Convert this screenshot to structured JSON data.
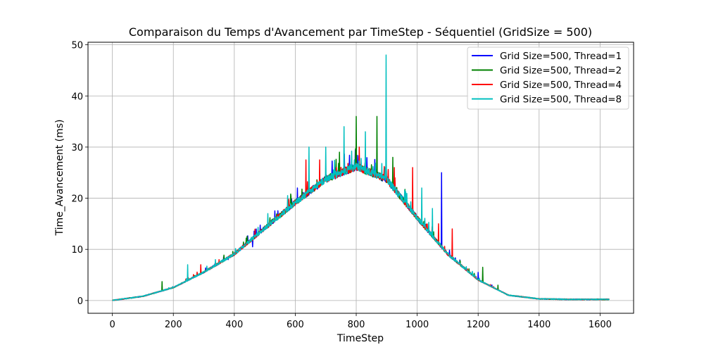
{
  "chart_data": {
    "type": "line",
    "title": "Comparaison du Temps d'Avancement par TimeStep - Séquentiel (GridSize = 500)",
    "xlabel": "TimeStep",
    "ylabel": "Time_Avancement (ms)",
    "xlim": [
      -80,
      1710
    ],
    "ylim": [
      -2.5,
      50.5
    ],
    "xticks": [
      0,
      200,
      400,
      600,
      800,
      1000,
      1200,
      1400,
      1600
    ],
    "yticks": [
      0,
      10,
      20,
      30,
      40,
      50
    ],
    "grid": true,
    "legend_position": "top-right",
    "series": [
      {
        "name": "Grid Size=500, Thread=1",
        "color": "#0000ff",
        "x": [
          0,
          100,
          200,
          300,
          400,
          500,
          600,
          700,
          800,
          900,
          1000,
          1100,
          1200,
          1300,
          1400,
          1500,
          1630
        ],
        "y": [
          0,
          0.8,
          2.5,
          5.5,
          9.0,
          14.0,
          19.0,
          23.5,
          26.0,
          23.5,
          16.0,
          9.0,
          4.0,
          1.0,
          0.3,
          0.2,
          0.2
        ],
        "peaks": [
          [
            380,
            8.0
          ],
          [
            460,
            10.5
          ],
          [
            730,
            26
          ],
          [
            1080,
            25
          ],
          [
            1200,
            5.5
          ]
        ]
      },
      {
        "name": "Grid Size=500, Thread=2",
        "color": "#008000",
        "x": [
          0,
          100,
          200,
          300,
          400,
          500,
          600,
          700,
          800,
          900,
          1000,
          1100,
          1200,
          1300,
          1400,
          1500,
          1630
        ],
        "y": [
          0,
          0.8,
          2.5,
          5.5,
          9.0,
          14.0,
          19.0,
          23.5,
          26.0,
          23.5,
          16.0,
          9.0,
          4.0,
          1.0,
          0.3,
          0.2,
          0.2
        ],
        "peaks": [
          [
            163,
            3.7
          ],
          [
            395,
            9.6
          ],
          [
            745,
            29
          ],
          [
            800,
            36
          ],
          [
            868,
            36
          ],
          [
            920,
            28
          ],
          [
            1215,
            6.5
          ],
          [
            1265,
            3
          ]
        ]
      },
      {
        "name": "Grid Size=500, Thread=4",
        "color": "#ff0000",
        "x": [
          0,
          100,
          200,
          300,
          400,
          500,
          600,
          700,
          800,
          900,
          1000,
          1100,
          1200,
          1300,
          1400,
          1500,
          1630
        ],
        "y": [
          0,
          0.8,
          2.5,
          5.5,
          9.0,
          14.0,
          19.0,
          23.5,
          26.0,
          23.5,
          16.0,
          9.0,
          4.0,
          1.0,
          0.3,
          0.2,
          0.2
        ],
        "peaks": [
          [
            290,
            7.0
          ],
          [
            480,
            13.5
          ],
          [
            635,
            27.5
          ],
          [
            680,
            27.5
          ],
          [
            735,
            26
          ],
          [
            810,
            30
          ],
          [
            925,
            26
          ],
          [
            985,
            26
          ],
          [
            1070,
            15
          ],
          [
            1115,
            14
          ]
        ]
      },
      {
        "name": "Grid Size=500, Thread=8",
        "color": "#00bfbf",
        "x": [
          0,
          100,
          200,
          300,
          400,
          500,
          600,
          700,
          800,
          900,
          1000,
          1100,
          1200,
          1300,
          1400,
          1500,
          1630
        ],
        "y": [
          0,
          0.8,
          2.5,
          5.5,
          9.0,
          14.0,
          19.0,
          23.5,
          26.0,
          23.5,
          16.0,
          9.0,
          4.0,
          1.0,
          0.3,
          0.2,
          0.2
        ],
        "peaks": [
          [
            247,
            7.0
          ],
          [
            338,
            8.0
          ],
          [
            510,
            17.0
          ],
          [
            575,
            20.5
          ],
          [
            645,
            30
          ],
          [
            700,
            30
          ],
          [
            760,
            34
          ],
          [
            830,
            33
          ],
          [
            898,
            48
          ],
          [
            1015,
            22
          ],
          [
            1050,
            18
          ]
        ]
      }
    ]
  }
}
